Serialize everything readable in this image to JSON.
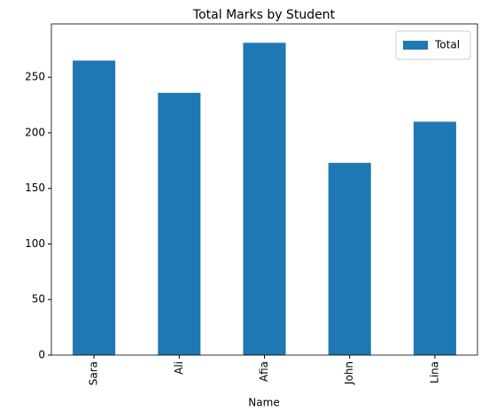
{
  "chart_data": {
    "type": "bar",
    "title": "Total Marks by Student",
    "x_label": "Name",
    "categories": [
      "Sara",
      "Ali",
      "Afia",
      "John",
      "Lina"
    ],
    "series": [
      {
        "name": "Total",
        "color": "#1f77b4",
        "values": [
          265,
          236,
          281,
          173,
          210
        ]
      }
    ],
    "ylim": [
      0,
      298
    ],
    "yticks": [
      0,
      50,
      100,
      150,
      200,
      250
    ],
    "grid": false,
    "legend": "upper right"
  }
}
